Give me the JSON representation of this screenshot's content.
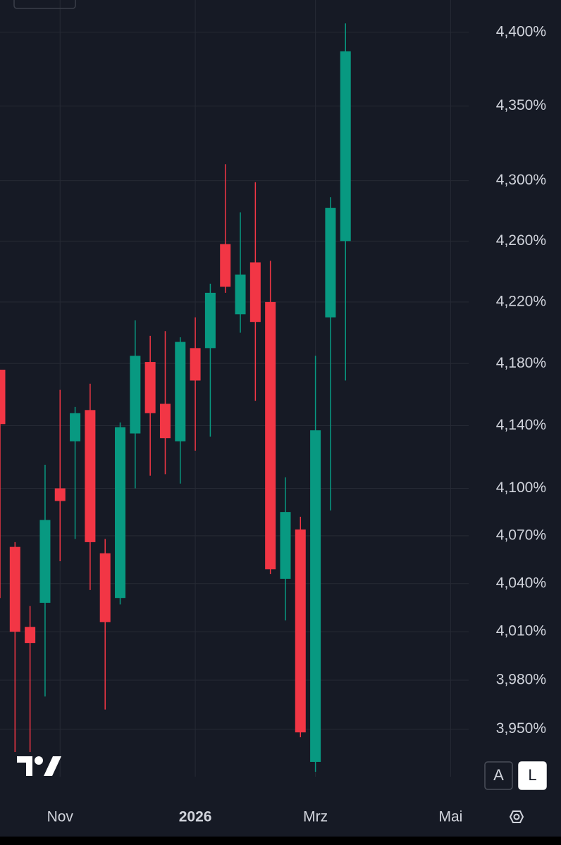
{
  "chart_data": {
    "type": "candlestick",
    "log_scale": true,
    "grid": true,
    "up_color": "#089981",
    "down_color": "#f23645",
    "x": [
      0,
      1,
      2,
      3,
      4,
      5,
      6,
      7,
      8,
      9,
      10,
      11,
      12,
      13,
      14,
      15,
      16,
      17,
      18,
      19,
      20,
      21,
      22,
      23
    ],
    "series": [
      {
        "open": [
          4.176,
          4.063,
          4.013,
          4.028,
          4.1,
          4.13,
          4.15,
          4.059,
          4.031,
          4.135,
          4.181,
          4.154,
          4.13,
          4.19,
          4.19,
          4.258,
          4.212,
          4.246,
          4.22,
          4.043,
          4.074,
          3.93,
          4.21,
          4.26
        ],
        "high": [
          4.176,
          4.066,
          4.026,
          4.115,
          4.163,
          4.152,
          4.167,
          4.068,
          4.142,
          4.208,
          4.198,
          4.201,
          4.197,
          4.21,
          4.232,
          4.311,
          4.279,
          4.299,
          4.247,
          4.107,
          4.082,
          4.185,
          4.289,
          4.406
        ],
        "low": [
          4.031,
          3.936,
          3.936,
          3.97,
          4.054,
          4.068,
          4.036,
          3.962,
          4.027,
          4.1,
          4.108,
          4.109,
          4.103,
          4.124,
          4.133,
          4.226,
          4.2,
          4.156,
          4.046,
          4.017,
          3.945,
          3.924,
          4.086,
          4.169
        ],
        "close": [
          4.141,
          4.01,
          4.003,
          4.08,
          4.092,
          4.148,
          4.066,
          4.016,
          4.139,
          4.185,
          4.148,
          4.132,
          4.194,
          4.169,
          4.226,
          4.23,
          4.238,
          4.207,
          4.049,
          4.085,
          3.948,
          4.137,
          4.282,
          4.387
        ]
      }
    ],
    "xlim": [
      0,
      31.2
    ],
    "xticks": [
      {
        "value": 4,
        "label": "Nov"
      },
      {
        "value": 13,
        "label": "2026"
      },
      {
        "value": 21,
        "label": "Mrz"
      },
      {
        "value": 30,
        "label": "Mai"
      }
    ],
    "ylim": [
      3.921,
      4.422
    ],
    "yticks": [
      {
        "value": 4.4,
        "label": "4,400%"
      },
      {
        "value": 4.35,
        "label": "4,350%"
      },
      {
        "value": 4.3,
        "label": "4,300%"
      },
      {
        "value": 4.26,
        "label": "4,260%"
      },
      {
        "value": 4.22,
        "label": "4,220%"
      },
      {
        "value": 4.18,
        "label": "4,180%"
      },
      {
        "value": 4.14,
        "label": "4,140%"
      },
      {
        "value": 4.1,
        "label": "4,100%"
      },
      {
        "value": 4.07,
        "label": "4,070%"
      },
      {
        "value": 4.04,
        "label": "4,040%"
      },
      {
        "value": 4.01,
        "label": "4,010%"
      },
      {
        "value": 3.98,
        "label": "3,980%"
      },
      {
        "value": 3.95,
        "label": "3,950%"
      }
    ],
    "scale_buttons": [
      "A",
      "L"
    ]
  }
}
